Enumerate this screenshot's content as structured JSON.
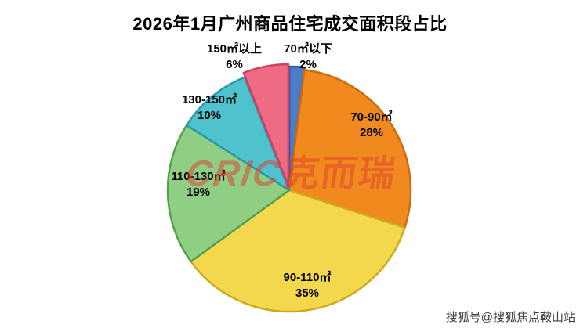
{
  "title": "2026年1月广州商品住宅成交面积段占比",
  "watermark": {
    "logo": "CRIC",
    "logo_cn": "克而瑞"
  },
  "footer_watermark": "搜狐号@搜狐焦点鞍山站",
  "chart_data": {
    "type": "pie",
    "title": "2026年1月广州商品住宅成交面积段占比",
    "unit": "percent",
    "start_angle_deg": -90,
    "direction": "clockwise",
    "legend": "none",
    "slices": [
      {
        "label": "70㎡以下",
        "value": 2,
        "pct": "2%",
        "color": "#4a7cc7",
        "border": "#2f5ba6",
        "explode": 3
      },
      {
        "label": "70-90㎡",
        "value": 28,
        "pct": "28%",
        "color": "#f08a1f",
        "border": "#cf6a0e",
        "explode": 0
      },
      {
        "label": "90-110㎡",
        "value": 35,
        "pct": "35%",
        "color": "#f3d84e",
        "border": "#d0a91d",
        "explode": 0
      },
      {
        "label": "110-130㎡",
        "value": 19,
        "pct": "19%",
        "color": "#90cd85",
        "border": "#55a24b",
        "explode": 0
      },
      {
        "label": "130-150㎡",
        "value": 10,
        "pct": "10%",
        "color": "#4ec3cd",
        "border": "#2b99a8",
        "explode": 0
      },
      {
        "label": "150㎡以上",
        "value": 6,
        "pct": "6%",
        "color": "#ef6b84",
        "border": "#d23f5f",
        "explode": 6
      }
    ]
  }
}
